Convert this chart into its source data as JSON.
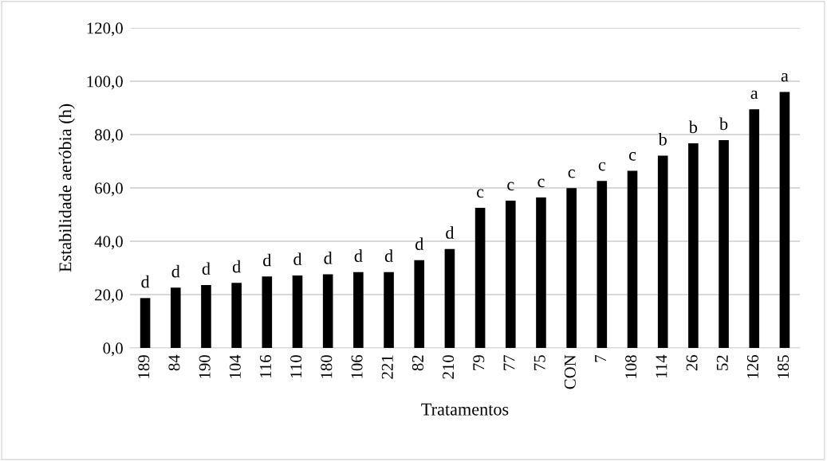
{
  "chart_data": {
    "type": "bar",
    "xlabel": "Tratamentos",
    "ylabel": "Estabilidade aeróbia (h)",
    "categories": [
      "189",
      "84",
      "190",
      "104",
      "116",
      "110",
      "180",
      "106",
      "221",
      "82",
      "210",
      "79",
      "77",
      "75",
      "CON",
      "7",
      "108",
      "114",
      "26",
      "52",
      "126",
      "185"
    ],
    "values": [
      18.7,
      22.6,
      23.6,
      24.4,
      26.8,
      27.2,
      27.6,
      28.4,
      28.4,
      32.9,
      37.1,
      52.5,
      55.2,
      56.4,
      59.9,
      62.6,
      66.4,
      72.1,
      76.7,
      77.9,
      89.5,
      96.0
    ],
    "color": "#000000",
    "ylim": [
      0,
      120
    ],
    "yticks": [
      {
        "value": 0,
        "label": "0,0"
      },
      {
        "value": 20,
        "label": "20,0"
      },
      {
        "value": 40,
        "label": "40,0"
      },
      {
        "value": 60,
        "label": "60,0"
      },
      {
        "value": 80,
        "label": "80,0"
      },
      {
        "value": 100,
        "label": "100,0"
      },
      {
        "value": 120,
        "label": "120,0"
      }
    ],
    "grid": "y",
    "annotations": [
      {
        "text": "d",
        "x": "189",
        "y": 18.7
      },
      {
        "text": "d",
        "x": "84",
        "y": 22.6
      },
      {
        "text": "d",
        "x": "190",
        "y": 23.6
      },
      {
        "text": "d",
        "x": "104",
        "y": 24.4
      },
      {
        "text": "d",
        "x": "116",
        "y": 26.8
      },
      {
        "text": "d",
        "x": "110",
        "y": 27.2
      },
      {
        "text": "d",
        "x": "180",
        "y": 27.6
      },
      {
        "text": "d",
        "x": "106",
        "y": 28.4
      },
      {
        "text": "d",
        "x": "221",
        "y": 28.4
      },
      {
        "text": "d",
        "x": "82",
        "y": 32.9
      },
      {
        "text": "d",
        "x": "210",
        "y": 37.1
      },
      {
        "text": "c",
        "x": "79",
        "y": 52.5
      },
      {
        "text": "c",
        "x": "77",
        "y": 55.2
      },
      {
        "text": "c",
        "x": "75",
        "y": 56.4
      },
      {
        "text": "c",
        "x": "CON",
        "y": 59.9
      },
      {
        "text": "c",
        "x": "7",
        "y": 62.6
      },
      {
        "text": "c",
        "x": "108",
        "y": 66.4
      },
      {
        "text": "b",
        "x": "114",
        "y": 72.1
      },
      {
        "text": "b",
        "x": "26",
        "y": 76.7
      },
      {
        "text": "b",
        "x": "52",
        "y": 77.9
      },
      {
        "text": "a",
        "x": "126",
        "y": 89.5
      },
      {
        "text": "a",
        "x": "185",
        "y": 96.0
      }
    ]
  }
}
